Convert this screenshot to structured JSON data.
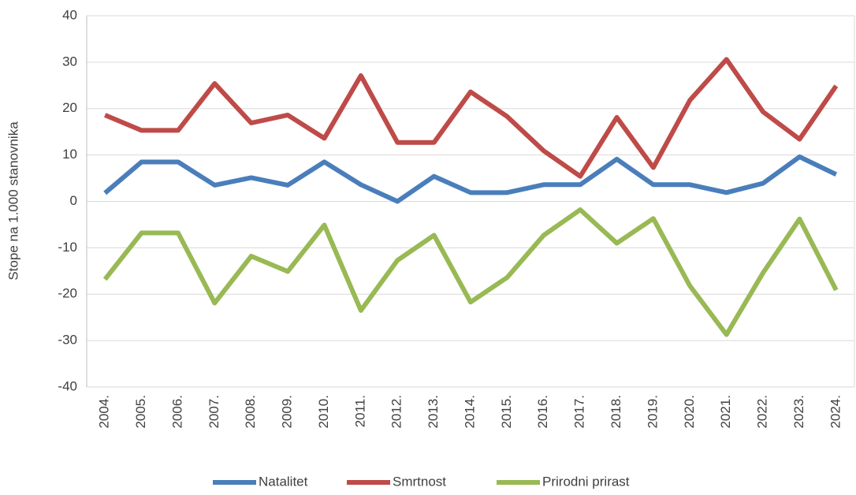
{
  "chart_data": {
    "type": "line",
    "y_label": "Stope na 1.000 stanovnika",
    "categories": [
      "2004.",
      "2005.",
      "2006.",
      "2007.",
      "2008.",
      "2009.",
      "2010.",
      "2011.",
      "2012.",
      "2013.",
      "2014.",
      "2015.",
      "2016.",
      "2017.",
      "2018.",
      "2019.",
      "2020.",
      "2021.",
      "2022.",
      "2023.",
      "2024."
    ],
    "series": [
      {
        "name": "Natalitet",
        "color": "#4a7ebb",
        "values": [
          1.8,
          8.5,
          8.5,
          3.5,
          5.1,
          3.5,
          8.5,
          3.6,
          0,
          5.4,
          1.9,
          1.9,
          3.6,
          3.6,
          9.1,
          3.6,
          3.6,
          1.9,
          3.9,
          9.6,
          5.8
        ]
      },
      {
        "name": "Smrtnost",
        "color": "#be4b48",
        "values": [
          18.6,
          15.3,
          15.3,
          25.4,
          16.9,
          18.6,
          13.6,
          27.1,
          12.7,
          12.7,
          23.6,
          18.3,
          10.9,
          5.4,
          18.1,
          7.3,
          21.8,
          30.6,
          19.3,
          13.4,
          24.9
        ]
      },
      {
        "name": "Prirodni prirast",
        "color": "#98b954",
        "values": [
          -16.8,
          -6.8,
          -6.8,
          -21.9,
          -11.8,
          -15.1,
          -5.1,
          -23.5,
          -12.7,
          -7.3,
          -21.7,
          -16.4,
          -7.3,
          -1.8,
          -9,
          -3.7,
          -18.2,
          -28.7,
          -15.4,
          -3.8,
          -19.1
        ]
      }
    ],
    "ylim": [
      -40,
      40
    ],
    "yticks": [
      -40,
      -30,
      -20,
      -10,
      0,
      10,
      20,
      30,
      40
    ],
    "grid": true,
    "legend": "bottom"
  }
}
